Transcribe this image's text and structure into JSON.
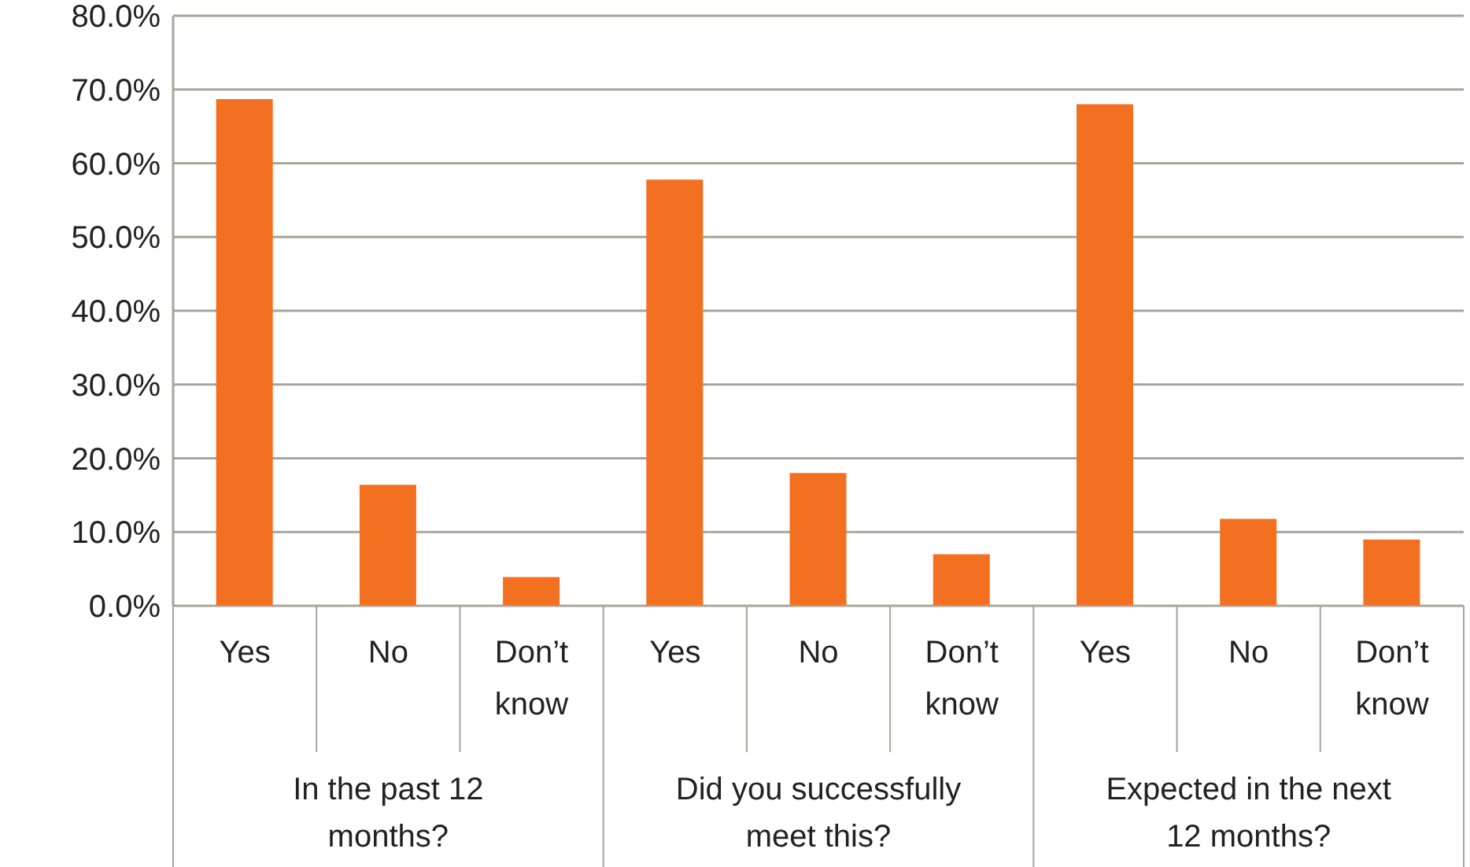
{
  "chart_data": {
    "type": "bar",
    "categories": [
      "Yes",
      "No",
      "Don’t know",
      "Yes",
      "No",
      "Don’t know",
      "Yes",
      "No",
      "Don’t know"
    ],
    "values": [
      68.7,
      16.4,
      3.9,
      57.8,
      18.0,
      7.0,
      68.0,
      11.8,
      9.0
    ],
    "color": "#f37021",
    "ylim": [
      0,
      80
    ],
    "yticks": [
      {
        "value": 0,
        "label": "0.0%"
      },
      {
        "value": 10,
        "label": "10.0%"
      },
      {
        "value": 20,
        "label": "20.0%"
      },
      {
        "value": 30,
        "label": "30.0%"
      },
      {
        "value": 40,
        "label": "40.0%"
      },
      {
        "value": 50,
        "label": "50.0%"
      },
      {
        "value": 60,
        "label": "60.0%"
      },
      {
        "value": 70,
        "label": "70.0%"
      },
      {
        "value": 80,
        "label": "80.0%"
      }
    ],
    "grid": "y",
    "annotations": [
      "In the past 12 months?",
      "Did you successfully meet this?",
      "Expected in the next 12 months?"
    ]
  }
}
